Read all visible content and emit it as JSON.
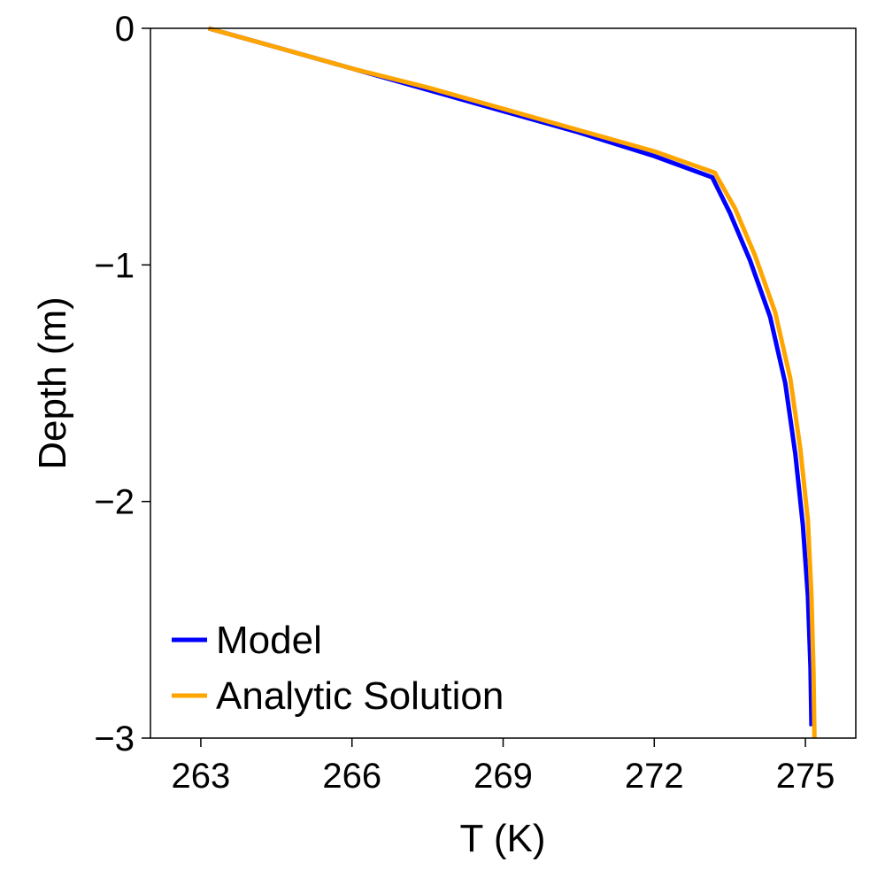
{
  "chart_data": {
    "type": "line",
    "xlabel": "T (K)",
    "ylabel": "Depth (m)",
    "xlim": [
      262.0,
      276.0
    ],
    "ylim": [
      -3.0,
      0.0
    ],
    "xticks": [
      263,
      266,
      269,
      272,
      275
    ],
    "xtick_labels": [
      "263",
      "266",
      "269",
      "272",
      "275"
    ],
    "yticks": [
      0,
      -1,
      -2,
      -3
    ],
    "ytick_labels": [
      "0",
      "−1",
      "−2",
      "−3"
    ],
    "grid": false,
    "legend_position": "bottom-left",
    "series": [
      {
        "name": "Model",
        "color": "#0000ff",
        "x": [
          263.15,
          264.5,
          266.0,
          267.5,
          269.0,
          270.5,
          272.0,
          273.15,
          273.5,
          273.9,
          274.3,
          274.6,
          274.8,
          274.95,
          275.05,
          275.1,
          275.12
        ],
        "y": [
          0.0,
          -0.08,
          -0.17,
          -0.26,
          -0.35,
          -0.44,
          -0.54,
          -0.63,
          -0.78,
          -0.98,
          -1.22,
          -1.5,
          -1.8,
          -2.1,
          -2.4,
          -2.7,
          -2.95
        ]
      },
      {
        "name": "Analytic Solution",
        "color": "#ffa500",
        "x": [
          263.15,
          264.5,
          266.0,
          267.5,
          269.0,
          270.5,
          272.0,
          273.2,
          273.6,
          274.0,
          274.4,
          274.7,
          274.9,
          275.05,
          275.12,
          275.16,
          275.18
        ],
        "y": [
          0.0,
          -0.08,
          -0.17,
          -0.25,
          -0.34,
          -0.43,
          -0.52,
          -0.61,
          -0.76,
          -0.96,
          -1.2,
          -1.48,
          -1.78,
          -2.08,
          -2.4,
          -2.72,
          -3.0
        ]
      }
    ]
  }
}
